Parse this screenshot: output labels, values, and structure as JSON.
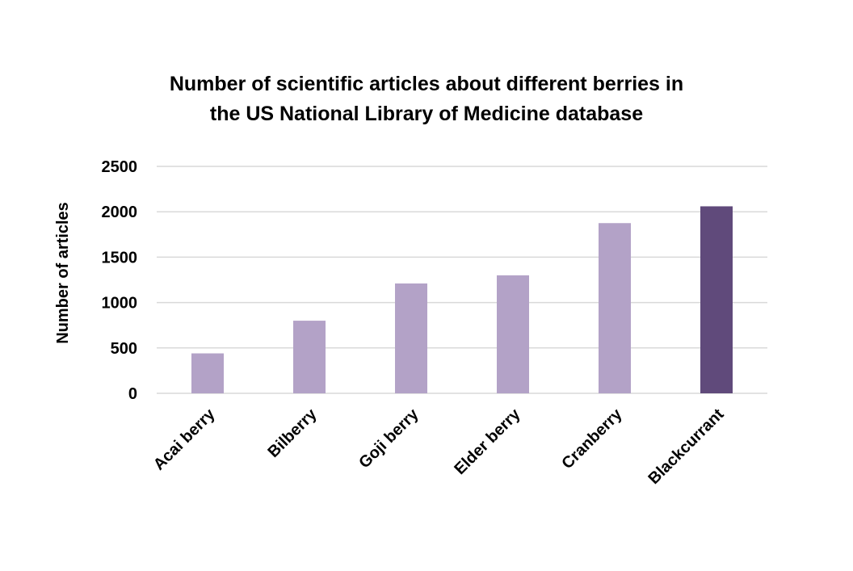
{
  "chart_data": {
    "type": "bar",
    "title_lines": [
      "Number of scientific articles about different berries in",
      "the US National Library of Medicine database"
    ],
    "xlabel": "",
    "ylabel": "Number of articles",
    "ylim": [
      0,
      2500
    ],
    "yticks": [
      0,
      500,
      1000,
      1500,
      2000,
      2500
    ],
    "grid": true,
    "legend": false,
    "categories": [
      "Acai berry",
      "Bilberry",
      "Goji berry",
      "Elder berry",
      "Cranberry",
      "Blackcurrant"
    ],
    "values": [
      440,
      800,
      1210,
      1300,
      1875,
      2060
    ],
    "colors": {
      "default_bar": "#b3a2c7",
      "highlight_bar": "#604a7b",
      "grid": "#d9d9d9",
      "text": "#000000"
    },
    "highlight_category": "Blackcurrant"
  }
}
